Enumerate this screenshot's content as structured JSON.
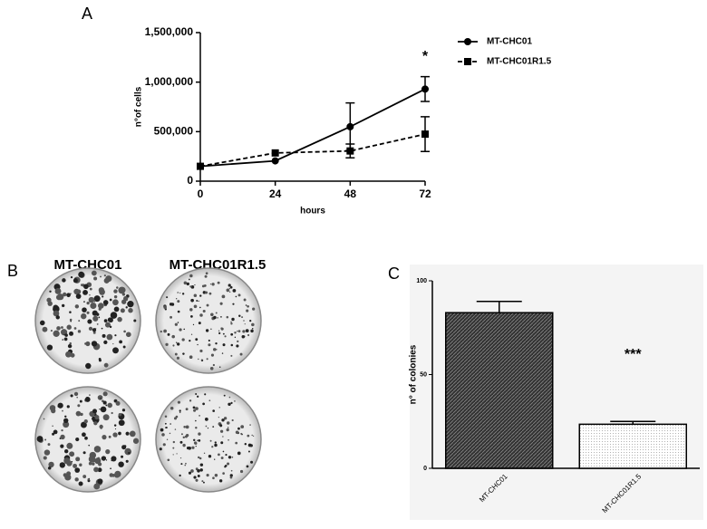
{
  "panel_labels": [
    "A",
    "B",
    "C"
  ],
  "plate_labels": [
    "MT-CHC01",
    "MT-CHC01R1.5"
  ],
  "chart_data": [
    {
      "type": "line",
      "xlabel": "hours",
      "ylabel": "n°of cells",
      "x": [
        0,
        24,
        48,
        72
      ],
      "xlim": [
        0,
        72
      ],
      "xticks": [
        0,
        24,
        48,
        72
      ],
      "ylim": [
        0,
        1500000
      ],
      "yticks": [
        0,
        {
          "value": 500000,
          "label": "500,000"
        },
        {
          "value": 1000000,
          "label": "1,000,000"
        },
        {
          "value": 1500000,
          "label": "1,500,000"
        }
      ],
      "series": [
        {
          "name": "MT-CHC01",
          "color": "#000000",
          "marker": "circle",
          "dash": false,
          "values": [
            150000,
            205000,
            550000,
            930000
          ],
          "errors": [
            0,
            0,
            240000,
            125000
          ]
        },
        {
          "name": "MT-CHC01R1.5",
          "color": "#000000",
          "marker": "square",
          "dash": true,
          "values": [
            150000,
            285000,
            305000,
            475000
          ],
          "errors": [
            0,
            0,
            70000,
            175000
          ]
        }
      ],
      "annotations": [
        {
          "x": 72,
          "text": "*"
        }
      ]
    },
    {
      "type": "bar",
      "ylabel": "n° of colonies",
      "categories": [
        "MT-CHC01",
        "MT-CHC01R1.5"
      ],
      "values": [
        83,
        23.5
      ],
      "errors": [
        6,
        1.5
      ],
      "ylim": [
        0,
        100
      ],
      "yticks": [
        0,
        50,
        100
      ],
      "annotations": [
        {
          "category": 1,
          "text": "***"
        }
      ]
    }
  ]
}
